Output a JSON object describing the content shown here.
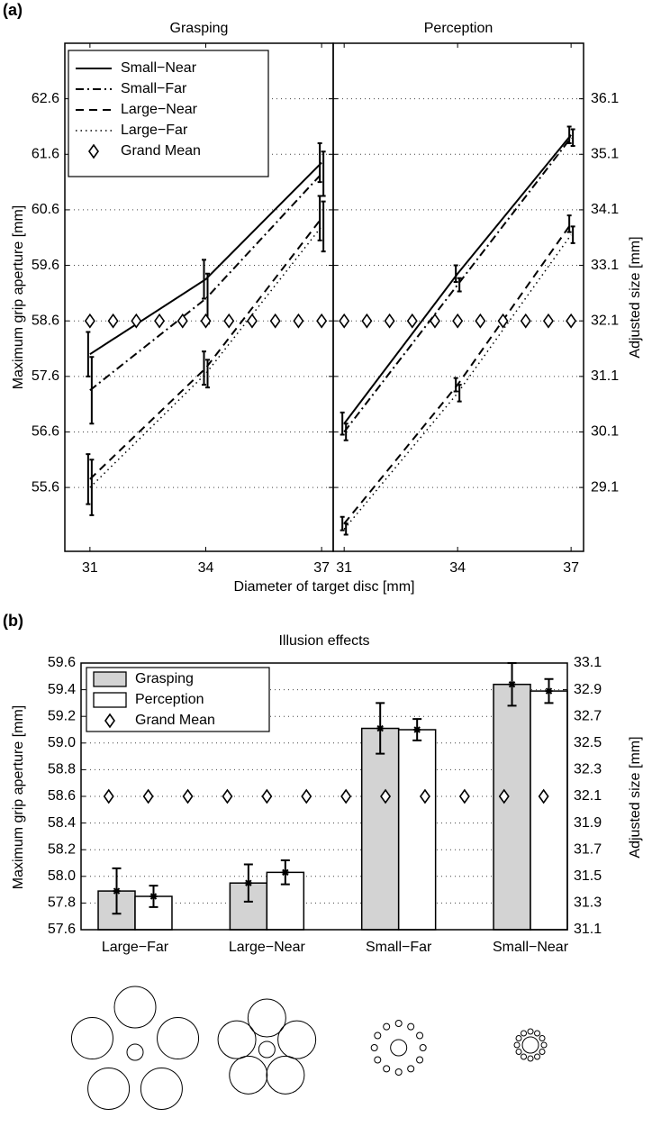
{
  "chart_data": [
    {
      "type": "line",
      "panel": "(a)",
      "xlabel": "Diameter of target disc [mm]",
      "ylabel": "Maximum grip aperture [mm]",
      "y2label": "Adjusted size [mm]",
      "legend": "upper left",
      "grid": true,
      "series": [
        {
          "name": "Small−Near",
          "color": "#000000",
          "linestyle": "-"
        },
        {
          "name": "Small−Far",
          "color": "#000000",
          "linestyle": "-."
        },
        {
          "name": "Large−Near",
          "color": "#000000",
          "linestyle": "--"
        },
        {
          "name": "Large−Far",
          "color": "#000000",
          "linestyle": ":"
        },
        {
          "name": "Grand Mean",
          "color": "#000000",
          "marker": "diamond"
        }
      ],
      "subplots": [
        {
          "title": "Grasping",
          "x": [
            31,
            34,
            37
          ],
          "xlim": [
            30.35,
            37.3
          ],
          "xticks": [
            31,
            34,
            37
          ],
          "ylim": [
            54.45,
            63.6
          ],
          "yticks": [
            55.6,
            56.6,
            57.6,
            58.6,
            59.6,
            60.6,
            61.6,
            62.6
          ],
          "series": [
            {
              "values": [
                58.0,
                59.35,
                61.45
              ],
              "errors": [
                0.4,
                0.35,
                0.35
              ]
            },
            {
              "values": [
                57.35,
                59.0,
                61.25
              ],
              "errors": [
                0.6,
                0.45,
                0.4
              ]
            },
            {
              "values": [
                55.75,
                57.75,
                60.45
              ],
              "errors": [
                0.45,
                0.3,
                0.4
              ]
            },
            {
              "values": [
                55.6,
                57.65,
                60.3
              ],
              "errors": [
                0.5,
                0.25,
                0.45
              ]
            },
            {
              "x": [
                31,
                31.6,
                32.2,
                32.8,
                33.4,
                34,
                34.6,
                35.2,
                35.8,
                36.4,
                37
              ],
              "values": [
                58.6,
                58.6,
                58.6,
                58.6,
                58.6,
                58.6,
                58.6,
                58.6,
                58.6,
                58.6,
                58.6
              ]
            }
          ]
        },
        {
          "title": "Perception",
          "x": [
            31,
            34,
            37
          ],
          "xlim": [
            30.71,
            37.33
          ],
          "xticks": [
            31,
            34,
            37
          ],
          "y2lim": [
            27.95,
            37.1
          ],
          "y2ticks": [
            29.1,
            30.1,
            31.1,
            32.1,
            33.1,
            34.1,
            35.1,
            36.1
          ],
          "series": [
            {
              "axis": "y2",
              "values": [
                30.25,
                32.95,
                35.45
              ],
              "errors": [
                0.2,
                0.15,
                0.15
              ]
            },
            {
              "axis": "y2",
              "values": [
                30.1,
                32.75,
                35.4
              ],
              "errors": [
                0.15,
                0.12,
                0.15
              ]
            },
            {
              "axis": "y2",
              "values": [
                28.45,
                30.95,
                33.85
              ],
              "errors": [
                0.12,
                0.12,
                0.15
              ]
            },
            {
              "axis": "y2",
              "values": [
                28.35,
                30.8,
                33.65
              ],
              "errors": [
                0.1,
                0.15,
                0.15
              ]
            },
            {
              "axis": "y2",
              "x": [
                31,
                31.6,
                32.2,
                32.8,
                33.4,
                34,
                34.6,
                35.2,
                35.8,
                36.4,
                37
              ],
              "values": [
                32.1,
                32.1,
                32.1,
                32.1,
                32.1,
                32.1,
                32.1,
                32.1,
                32.1,
                32.1,
                32.1
              ]
            }
          ]
        }
      ]
    },
    {
      "type": "bar",
      "panel": "(b)",
      "title": "Illusion effects",
      "ylabel": "Maximum grip aperture [mm]",
      "y2label": "Adjusted size [mm]",
      "categories": [
        "Large−Far",
        "Large−Near",
        "Small−Far",
        "Small−Near"
      ],
      "xlim": [
        0.59,
        4.28
      ],
      "ylim": [
        57.6,
        59.6
      ],
      "yticks": [
        57.6,
        57.8,
        {
          "value": 58,
          "label": "58.0"
        },
        58.2,
        58.4,
        58.6,
        58.8,
        {
          "value": 59,
          "label": "59.0"
        },
        59.2,
        59.4,
        59.6
      ],
      "y2lim": [
        31.1,
        33.1
      ],
      "y2ticks": [
        31.1,
        31.3,
        31.5,
        31.7,
        31.9,
        32.1,
        32.3,
        32.5,
        32.7,
        32.9,
        33.1
      ],
      "legend": "upper left",
      "grid": true,
      "series": [
        {
          "name": "Grasping",
          "color": "#d3d3d3",
          "values": [
            57.89,
            57.95,
            59.11,
            59.44
          ],
          "errors": [
            0.17,
            0.14,
            0.19,
            0.16
          ]
        },
        {
          "name": "Perception",
          "color": "#ffffff",
          "values": [
            57.85,
            58.03,
            59.1,
            59.39
          ],
          "errors": [
            0.08,
            0.09,
            0.08,
            0.09
          ]
        },
        {
          "name": "Grand Mean",
          "color": "#000000",
          "marker": "diamond",
          "x": [
            0.8,
            1.1,
            1.4,
            1.7,
            2.0,
            2.3,
            2.6,
            2.9,
            3.2,
            3.5,
            3.8,
            4.1
          ],
          "values": [
            58.6,
            58.6,
            58.6,
            58.6,
            58.6,
            58.6,
            58.6,
            58.6,
            58.6,
            58.6,
            58.6,
            58.6
          ]
        }
      ]
    }
  ]
}
